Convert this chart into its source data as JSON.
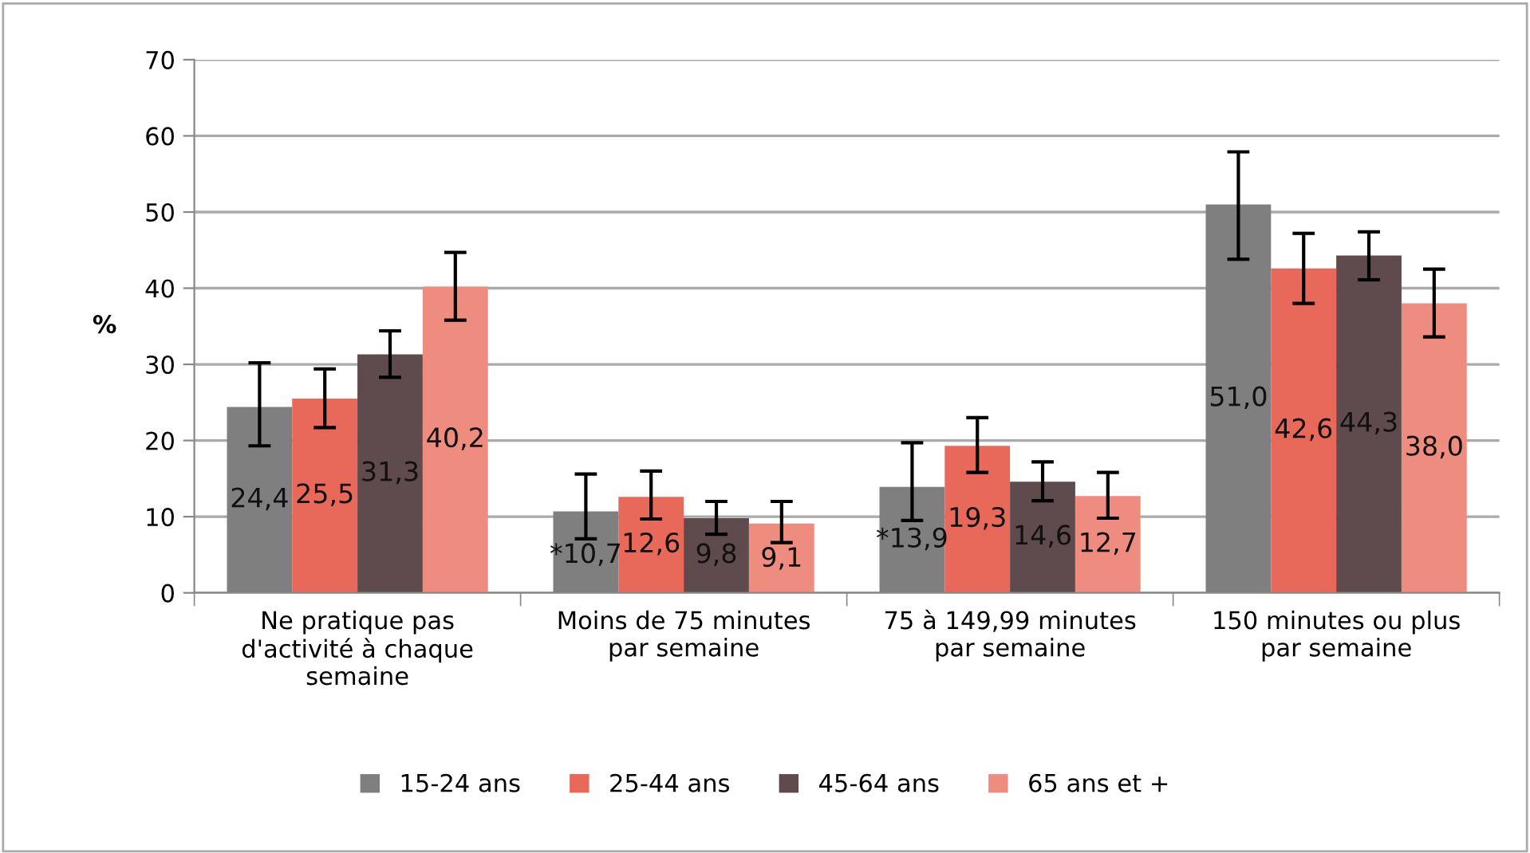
{
  "chart_data": {
    "type": "bar",
    "ylabel": "%",
    "categories": [
      "Ne pratique pas\nd'activité à chaque\nsemaine",
      "Moins de 75 minutes\npar semaine",
      "75 à 149,99 minutes\npar semaine",
      "150 minutes ou plus\npar semaine"
    ],
    "series": [
      {
        "name": "15-24 ans",
        "color": "#7f7f7f",
        "values": [
          24.4,
          10.7,
          13.9,
          51.0
        ],
        "value_labels": [
          "24,4",
          "*10,7",
          "*13,9",
          "51,0"
        ],
        "errors": [
          [
            19.3,
            30.2
          ],
          [
            7.1,
            15.6
          ],
          [
            9.5,
            19.7
          ],
          [
            43.8,
            57.9
          ]
        ]
      },
      {
        "name": "25-44 ans",
        "color": "#e8695a",
        "values": [
          25.5,
          12.6,
          19.3,
          42.6
        ],
        "value_labels": [
          "25,5",
          "12,6",
          "19,3",
          "42,6"
        ],
        "errors": [
          [
            21.7,
            29.4
          ],
          [
            9.7,
            16.0
          ],
          [
            15.8,
            23.0
          ],
          [
            38.0,
            47.2
          ]
        ]
      },
      {
        "name": "45-64 ans",
        "color": "#5f4a4d",
        "values": [
          31.3,
          9.8,
          14.6,
          44.3
        ],
        "value_labels": [
          "31,3",
          "9,8",
          "14,6",
          "44,3"
        ],
        "errors": [
          [
            28.3,
            34.4
          ],
          [
            7.7,
            12.0
          ],
          [
            12.1,
            17.2
          ],
          [
            41.1,
            47.4
          ]
        ]
      },
      {
        "name": "65 ans et +",
        "color": "#ef8c80",
        "values": [
          40.2,
          9.1,
          12.7,
          38.0
        ],
        "value_labels": [
          "40,2",
          "9,1",
          "12,7",
          "38,0"
        ],
        "errors": [
          [
            35.8,
            44.7
          ],
          [
            6.6,
            12.0
          ],
          [
            9.8,
            15.8
          ],
          [
            33.6,
            42.5
          ]
        ]
      }
    ],
    "ylim": [
      0,
      70
    ],
    "yticks": [
      0,
      10,
      20,
      30,
      40,
      50,
      60,
      70
    ],
    "grid": "y",
    "legend": "bottom"
  }
}
